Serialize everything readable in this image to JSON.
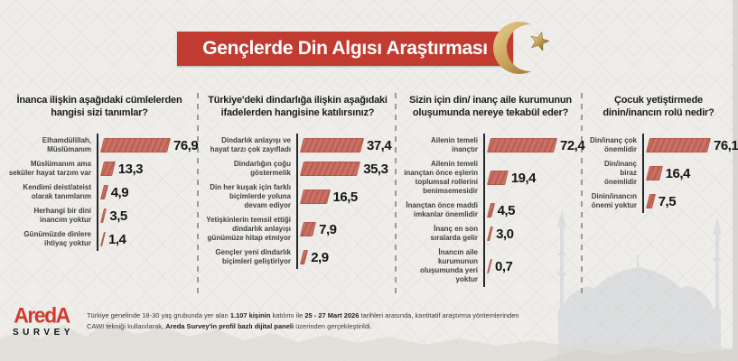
{
  "header": {
    "title": "Gençlerde Din Algısı Araştırması"
  },
  "chart_data": [
    {
      "type": "bar",
      "orientation": "horizontal",
      "title": "İnanca ilişkin aşağıdaki cümlelerden hangisi sizi tanımlar?",
      "categories": [
        "Elhamdülillah, Müslümanım",
        "Müslümanım ama seküler hayat tarzım var",
        "Kendimi deist/ateist olarak tanımlarım",
        "Herhangi bir dini inancım yoktur",
        "Günümüzde dinlere ihtiyaç yoktur"
      ],
      "values": [
        76.9,
        13.3,
        4.9,
        3.5,
        1.4
      ],
      "value_labels": [
        "76,9",
        "13,3",
        "4,9",
        "3,5",
        "1,4"
      ]
    },
    {
      "type": "bar",
      "orientation": "horizontal",
      "title": "Türkiye'deki dindarlığa ilişkin aşağıdaki ifadelerden hangisine katılırsınız?",
      "categories": [
        "Dindarlık anlayışı ve hayat tarzı çok zayıfladı",
        "Dindarlığın çoğu göstermelik",
        "Din her kuşak için farklı biçimlerde yoluna devam ediyor",
        "Yetişkinlerin temsil ettiği dindarlık anlayışı günümüze hitap etmiyor",
        "Gençler yeni dindarlık biçimleri geliştiriyor"
      ],
      "values": [
        37.4,
        35.3,
        16.5,
        7.9,
        2.9
      ],
      "value_labels": [
        "37,4",
        "35,3",
        "16,5",
        "7,9",
        "2,9"
      ]
    },
    {
      "type": "bar",
      "orientation": "horizontal",
      "title": "Sizin için din/ inanç aile kurumunun oluşumunda nereye tekabül eder?",
      "categories": [
        "Ailenin temeli inançtır",
        "Ailenin temeli inançtan önce eşlerin toplumsal rollerini benimsemesidir",
        "İnançtan önce maddi imkanlar önemlidir",
        "İnanç en son sıralarda gelir",
        "İnancın aile kurumunun oluşumunda yeri yoktur"
      ],
      "values": [
        72.4,
        19.4,
        4.5,
        3.0,
        0.7
      ],
      "value_labels": [
        "72,4",
        "19,4",
        "4,5",
        "3,0",
        "0,7"
      ]
    },
    {
      "type": "bar",
      "orientation": "horizontal",
      "title": "Çocuk yetiştirmede dinin/inancın rolü nedir?",
      "categories": [
        "Din/inanç çok önemlidir",
        "Din/inanç biraz önemlidir",
        "Dinin/inancın önemi yoktur"
      ],
      "values": [
        76.1,
        16.4,
        7.5
      ],
      "value_labels": [
        "76,1",
        "16,4",
        "7,5"
      ]
    }
  ],
  "footer": {
    "logo_top": "AredA",
    "logo_bottom": "SURVEY",
    "seg1": "Türkiye genelinde 18-30 yaş grubunda yer alan ",
    "seg2": "1.107 kişinin",
    "seg3": " katılımı ile ",
    "seg4": "25 - 27 Mart 2026",
    "seg5": " tarihleri arasında, kantitatif araştırma yöntemlerinden CAWI tekniği kullanılarak, ",
    "seg6": "Areda Survey'in profil bazlı dijital paneli",
    "seg7": " üzerinden gerçekleştirildi."
  },
  "colors": {
    "banner_red": "#c13b30",
    "bar_fill": "#ca7164",
    "bar_stripe": "#b55e53",
    "gold": "#c9a45c",
    "background": "#efedea"
  }
}
